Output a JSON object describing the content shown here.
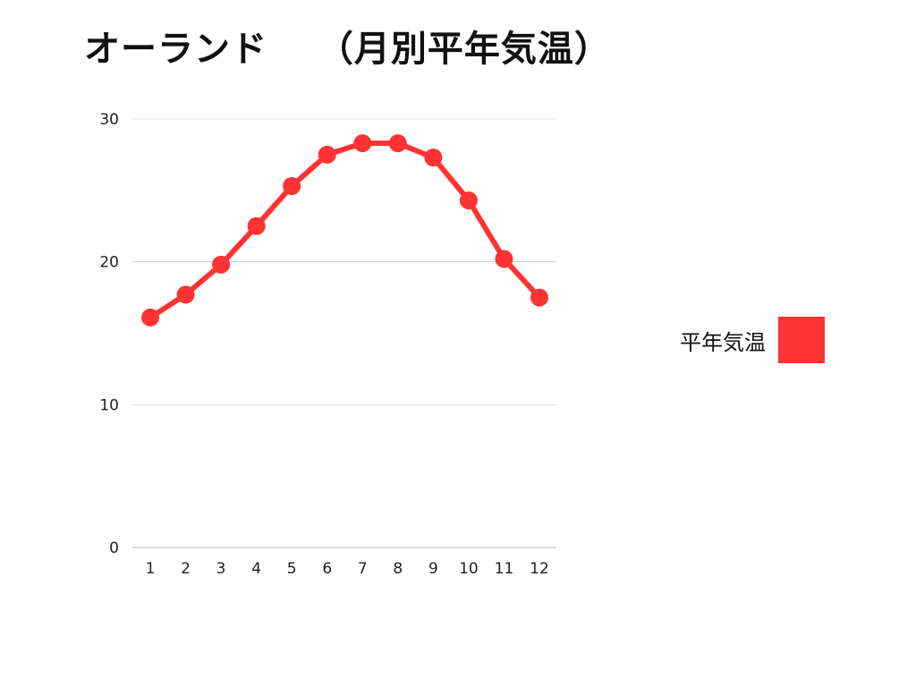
{
  "chart_data": {
    "type": "line",
    "title": "オーランド　 （月別平年気温）",
    "categories": [
      "1",
      "2",
      "3",
      "4",
      "5",
      "6",
      "7",
      "8",
      "9",
      "10",
      "11",
      "12"
    ],
    "series": [
      {
        "name": "平年気温",
        "values": [
          16.1,
          17.7,
          19.8,
          22.5,
          25.3,
          27.5,
          28.3,
          28.3,
          27.3,
          24.3,
          20.2,
          17.5
        ]
      }
    ],
    "y_ticks": [
      "0",
      "10",
      "20",
      "30"
    ],
    "ylim": [
      0,
      30
    ],
    "grid": true,
    "legend_position": "right",
    "color": "#ff3333"
  }
}
